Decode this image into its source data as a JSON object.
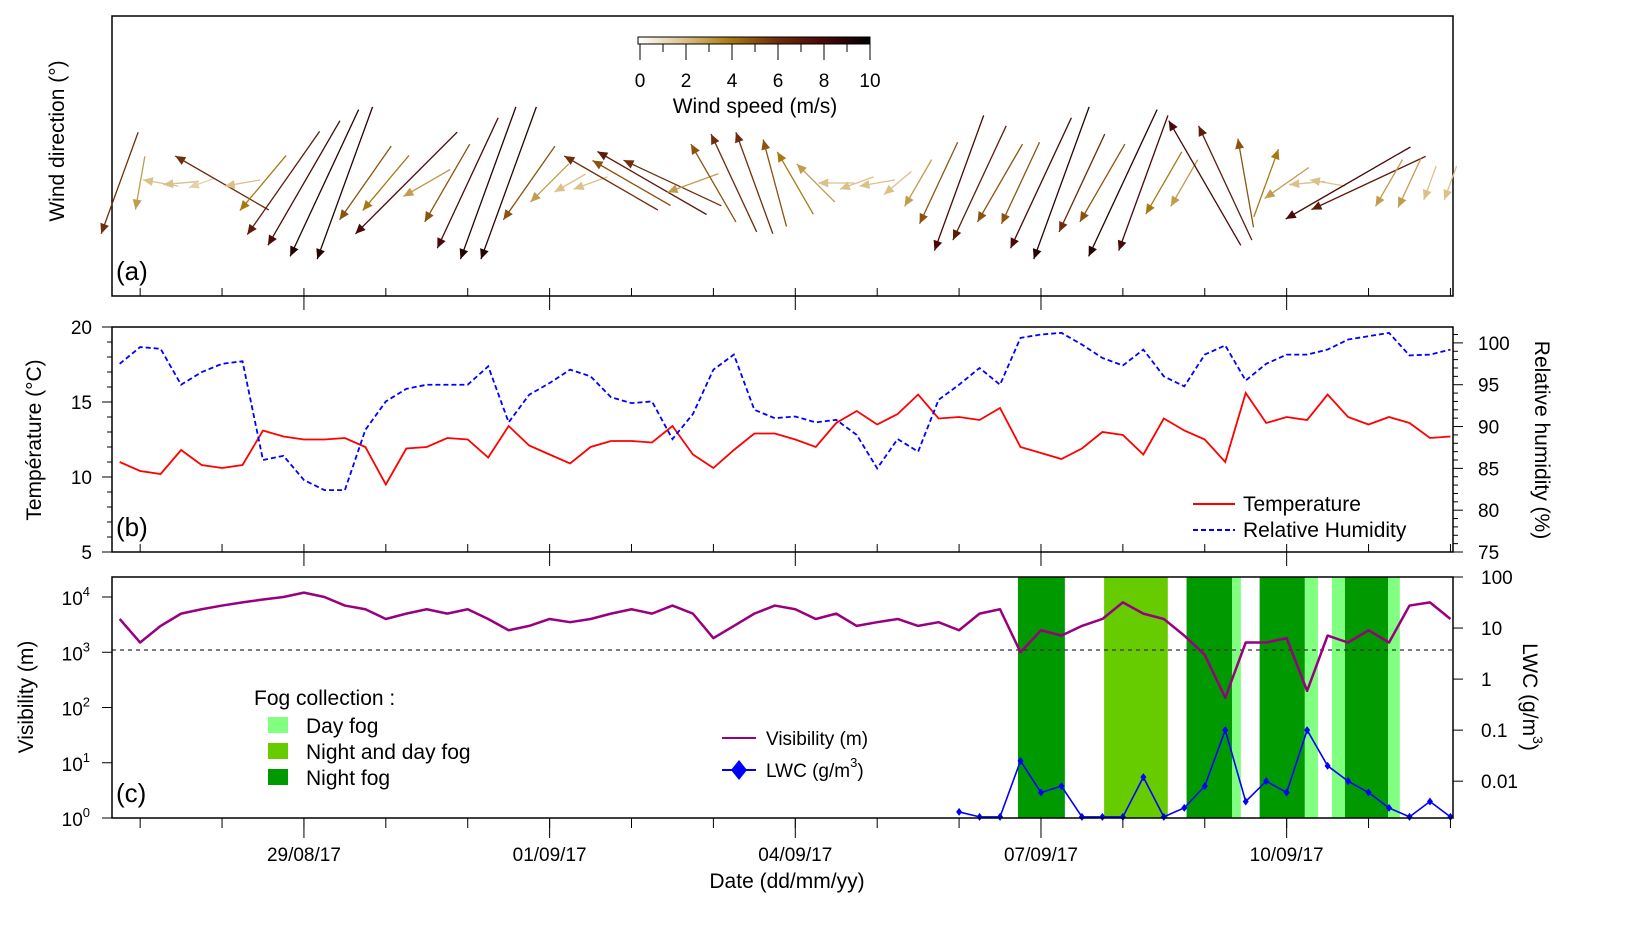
{
  "times": [
    "2017-08-26 18:00",
    "2017-08-27 00:00",
    "2017-08-27 06:00",
    "2017-08-27 12:00",
    "2017-08-27 18:00",
    "2017-08-28 00:00",
    "2017-08-28 06:00",
    "2017-08-28 12:00",
    "2017-08-28 18:00",
    "2017-08-29 00:00",
    "2017-08-29 06:00",
    "2017-08-29 12:00",
    "2017-08-29 18:00",
    "2017-08-30 00:00",
    "2017-08-30 06:00",
    "2017-08-30 12:00",
    "2017-08-30 18:00",
    "2017-08-31 00:00",
    "2017-08-31 06:00",
    "2017-08-31 12:00",
    "2017-08-31 18:00",
    "2017-09-01 00:00",
    "2017-09-01 06:00",
    "2017-09-01 12:00",
    "2017-09-01 18:00",
    "2017-09-02 00:00",
    "2017-09-02 06:00",
    "2017-09-02 12:00",
    "2017-09-02 18:00",
    "2017-09-03 00:00",
    "2017-09-03 06:00",
    "2017-09-03 12:00",
    "2017-09-03 18:00",
    "2017-09-04 00:00",
    "2017-09-04 06:00",
    "2017-09-04 12:00",
    "2017-09-04 18:00",
    "2017-09-05 00:00",
    "2017-09-05 06:00",
    "2017-09-05 12:00",
    "2017-09-05 18:00",
    "2017-09-06 00:00",
    "2017-09-06 06:00",
    "2017-09-06 12:00",
    "2017-09-06 18:00",
    "2017-09-07 00:00",
    "2017-09-07 06:00",
    "2017-09-07 12:00",
    "2017-09-07 18:00",
    "2017-09-08 00:00",
    "2017-09-08 06:00",
    "2017-09-08 12:00",
    "2017-09-08 18:00",
    "2017-09-09 00:00",
    "2017-09-09 06:00",
    "2017-09-09 12:00",
    "2017-09-09 18:00",
    "2017-09-10 00:00",
    "2017-09-10 06:00",
    "2017-09-10 12:00",
    "2017-09-10 18:00",
    "2017-09-11 00:00",
    "2017-09-11 06:00",
    "2017-09-11 12:00",
    "2017-09-11 18:00",
    "2017-09-12 00:00"
  ],
  "xaxis": {
    "label": "Date (dd/mm/yy)",
    "xlim": [
      "2017-08-26 15:45",
      "2017-09-12 00:45"
    ],
    "ticks": [
      "29/08/17",
      "01/09/17",
      "04/09/17",
      "07/09/17",
      "10/09/17"
    ]
  },
  "chart_data": [
    {
      "type": "vector",
      "panel_label": "(a)",
      "ylabel": "Wind direction (°)",
      "colorbar": {
        "title": "Wind speed (m/s)",
        "ticks": [
          "0",
          "2",
          "4",
          "6",
          "8",
          "10"
        ],
        "range": [
          0,
          10
        ],
        "colors": [
          "#ffffff",
          "#dcc08a",
          "#a87812",
          "#6e2d0c",
          "#4a0808",
          "#000000"
        ]
      },
      "direction_deg": [
        200,
        190,
        280,
        265,
        250,
        300,
        260,
        220,
        215,
        210,
        205,
        200,
        215,
        220,
        225,
        240,
        210,
        205,
        200,
        200,
        215,
        225,
        240,
        250,
        300,
        300,
        300,
        295,
        250,
        330,
        335,
        340,
        345,
        330,
        315,
        270,
        250,
        260,
        230,
        210,
        205,
        200,
        205,
        210,
        205,
        205,
        200,
        205,
        210,
        205,
        200,
        210,
        210,
        330,
        335,
        350,
        20,
        235,
        265,
        280,
        240,
        245,
        210,
        205,
        200,
        200
      ],
      "speed_ms": [
        6,
        3,
        2,
        2,
        1.5,
        6,
        2,
        4,
        7,
        8,
        9,
        9,
        5,
        4,
        8,
        3,
        5,
        8,
        9,
        9,
        5,
        3,
        2,
        2,
        6,
        5,
        7,
        6,
        3,
        5,
        6,
        6,
        5,
        4,
        3,
        2,
        2,
        2,
        2,
        3,
        5,
        8,
        7,
        5,
        5,
        8,
        9,
        6,
        5,
        9,
        8,
        4,
        3,
        8,
        7,
        5,
        4,
        3,
        2,
        2,
        8,
        7,
        3,
        3,
        2,
        2
      ]
    },
    {
      "type": "line",
      "panel_label": "(b)",
      "ylabel": "Température (°C)",
      "ylabel_right": "Relative humidity (%)",
      "ylim": [
        5,
        20
      ],
      "ylim_right": [
        75,
        101.9
      ],
      "yticks": [
        "5",
        "10",
        "15",
        "20"
      ],
      "yticks_right": [
        "75",
        "80",
        "85",
        "90",
        "95",
        "100"
      ],
      "series": [
        {
          "name": "Temperature",
          "color": "#ff0000",
          "axis": "left",
          "values": [
            11.0,
            10.4,
            10.2,
            11.8,
            10.8,
            10.6,
            10.8,
            13.1,
            12.7,
            12.5,
            12.5,
            12.6,
            12.0,
            9.5,
            11.9,
            12.0,
            12.6,
            12.5,
            11.3,
            13.4,
            12.1,
            11.5,
            10.9,
            12.0,
            12.4,
            12.4,
            12.3,
            13.4,
            11.5,
            10.6,
            11.8,
            12.9,
            12.9,
            12.5,
            12.0,
            13.6,
            14.4,
            13.5,
            14.2,
            15.5,
            13.9,
            14.0,
            13.8,
            14.6,
            12.0,
            11.6,
            11.2,
            11.9,
            13.0,
            12.8,
            11.5,
            13.9,
            13.1,
            12.5,
            11.0,
            15.6,
            13.6,
            14.0,
            13.8,
            15.5,
            14.0,
            13.5,
            14.0,
            13.6,
            12.6,
            12.7
          ]
        },
        {
          "name": "Relative Humidity",
          "color": "#0000ff",
          "axis": "right",
          "dash": "dashed",
          "values": [
            97.5,
            99.5,
            99.3,
            95.0,
            96.5,
            97.5,
            97.8,
            86.0,
            86.5,
            83.6,
            82.4,
            82.4,
            89.6,
            93.0,
            94.5,
            95.0,
            95.0,
            95.0,
            97.2,
            90.5,
            93.8,
            95.2,
            96.8,
            96.0,
            93.5,
            92.8,
            93.0,
            88.5,
            91.5,
            96.8,
            98.6,
            92.0,
            91.0,
            91.2,
            90.5,
            90.8,
            89.0,
            85.0,
            88.5,
            87.0,
            93.2,
            95.0,
            97.0,
            95.0,
            100.6,
            101.0,
            101.2,
            99.8,
            98.2,
            97.3,
            99.2,
            96.0,
            94.8,
            98.6,
            99.7,
            95.5,
            97.5,
            98.6,
            98.6,
            99.2,
            100.4,
            100.8,
            101.2,
            98.5,
            98.6,
            99.2
          ]
        }
      ]
    },
    {
      "type": "line",
      "panel_label": "(c)",
      "ylabel": "Visibility (m)",
      "ylabel_right": "LWC (g/m",
      "ylabel_right_sup": "3",
      "ylabel_right_end": ")",
      "yscale": "log",
      "ylim": [
        1,
        23000
      ],
      "yscale_right": "log",
      "ylim_right": [
        0.0019,
        100
      ],
      "yticks": [
        {
          "base": "10",
          "exp": "0"
        },
        {
          "base": "10",
          "exp": "1"
        },
        {
          "base": "10",
          "exp": "2"
        },
        {
          "base": "10",
          "exp": "3"
        },
        {
          "base": "10",
          "exp": "4"
        }
      ],
      "yticks_right": [
        "0.01",
        "0.1",
        "1",
        "10",
        "100"
      ],
      "reference_line": {
        "value": 1000,
        "style": "dashed"
      },
      "series": [
        {
          "name": "Visibility (m)",
          "color": "#990080",
          "axis": "left",
          "values": [
            4000,
            1500,
            3000,
            5000,
            6000,
            7000,
            8000,
            9000,
            10000,
            12000,
            10000,
            7000,
            6000,
            4000,
            5000,
            6000,
            5000,
            6000,
            4000,
            2500,
            3000,
            4000,
            3500,
            4000,
            5000,
            6000,
            5000,
            7000,
            5000,
            1800,
            3000,
            5000,
            7000,
            6000,
            4000,
            5000,
            3000,
            3500,
            4000,
            3000,
            3500,
            2500,
            5000,
            6000,
            1000,
            2500,
            2000,
            3000,
            4000,
            8000,
            5000,
            4000,
            2000,
            900,
            150,
            1500,
            1500,
            1800,
            200,
            2000,
            1500,
            2500,
            1500,
            7000,
            8000,
            4000
          ]
        },
        {
          "name": "LWC (g/m",
          "name_sup": "3",
          "name_end": ")",
          "color": "#0000ff",
          "axis": "right",
          "marker": "diamond",
          "values": [
            null,
            null,
            null,
            null,
            null,
            null,
            null,
            null,
            null,
            null,
            null,
            null,
            null,
            null,
            null,
            null,
            null,
            null,
            null,
            null,
            null,
            null,
            null,
            null,
            null,
            null,
            null,
            null,
            null,
            null,
            null,
            null,
            null,
            null,
            null,
            null,
            null,
            null,
            null,
            null,
            null,
            0.0025,
            0.002,
            0.002,
            0.025,
            0.006,
            0.008,
            0.002,
            0.002,
            0.002,
            0.012,
            0.002,
            0.003,
            0.008,
            0.1,
            0.004,
            0.01,
            0.006,
            0.1,
            0.02,
            0.01,
            0.006,
            0.003,
            0.002,
            0.004,
            0.002
          ]
        }
      ],
      "fog_legend": {
        "title": "Fog collection :",
        "items": [
          {
            "label": "Day fog",
            "color": "#80ff80"
          },
          {
            "label": "Night and day fog",
            "color": "#66cc00"
          },
          {
            "label": "Night fog",
            "color": "#009900"
          }
        ]
      },
      "fog_periods": [
        {
          "type": "Night fog",
          "start": "2017-09-06 17:15",
          "end": "2017-09-07 07:00"
        },
        {
          "type": "Night and day fog",
          "start": "2017-09-07 18:30",
          "end": "2017-09-08 13:10"
        },
        {
          "type": "Night fog",
          "start": "2017-09-08 18:40",
          "end": "2017-09-09 08:00"
        },
        {
          "type": "Day fog",
          "start": "2017-09-09 08:00",
          "end": "2017-09-09 10:35"
        },
        {
          "type": "Night fog",
          "start": "2017-09-09 16:05",
          "end": "2017-09-10 05:20"
        },
        {
          "type": "Day fog",
          "start": "2017-09-10 05:20",
          "end": "2017-09-10 09:10"
        },
        {
          "type": "Day fog",
          "start": "2017-09-10 13:15",
          "end": "2017-09-10 17:05"
        },
        {
          "type": "Night fog",
          "start": "2017-09-10 17:05",
          "end": "2017-09-11 05:45"
        },
        {
          "type": "Day fog",
          "start": "2017-09-11 05:45",
          "end": "2017-09-11 09:10"
        }
      ]
    }
  ]
}
